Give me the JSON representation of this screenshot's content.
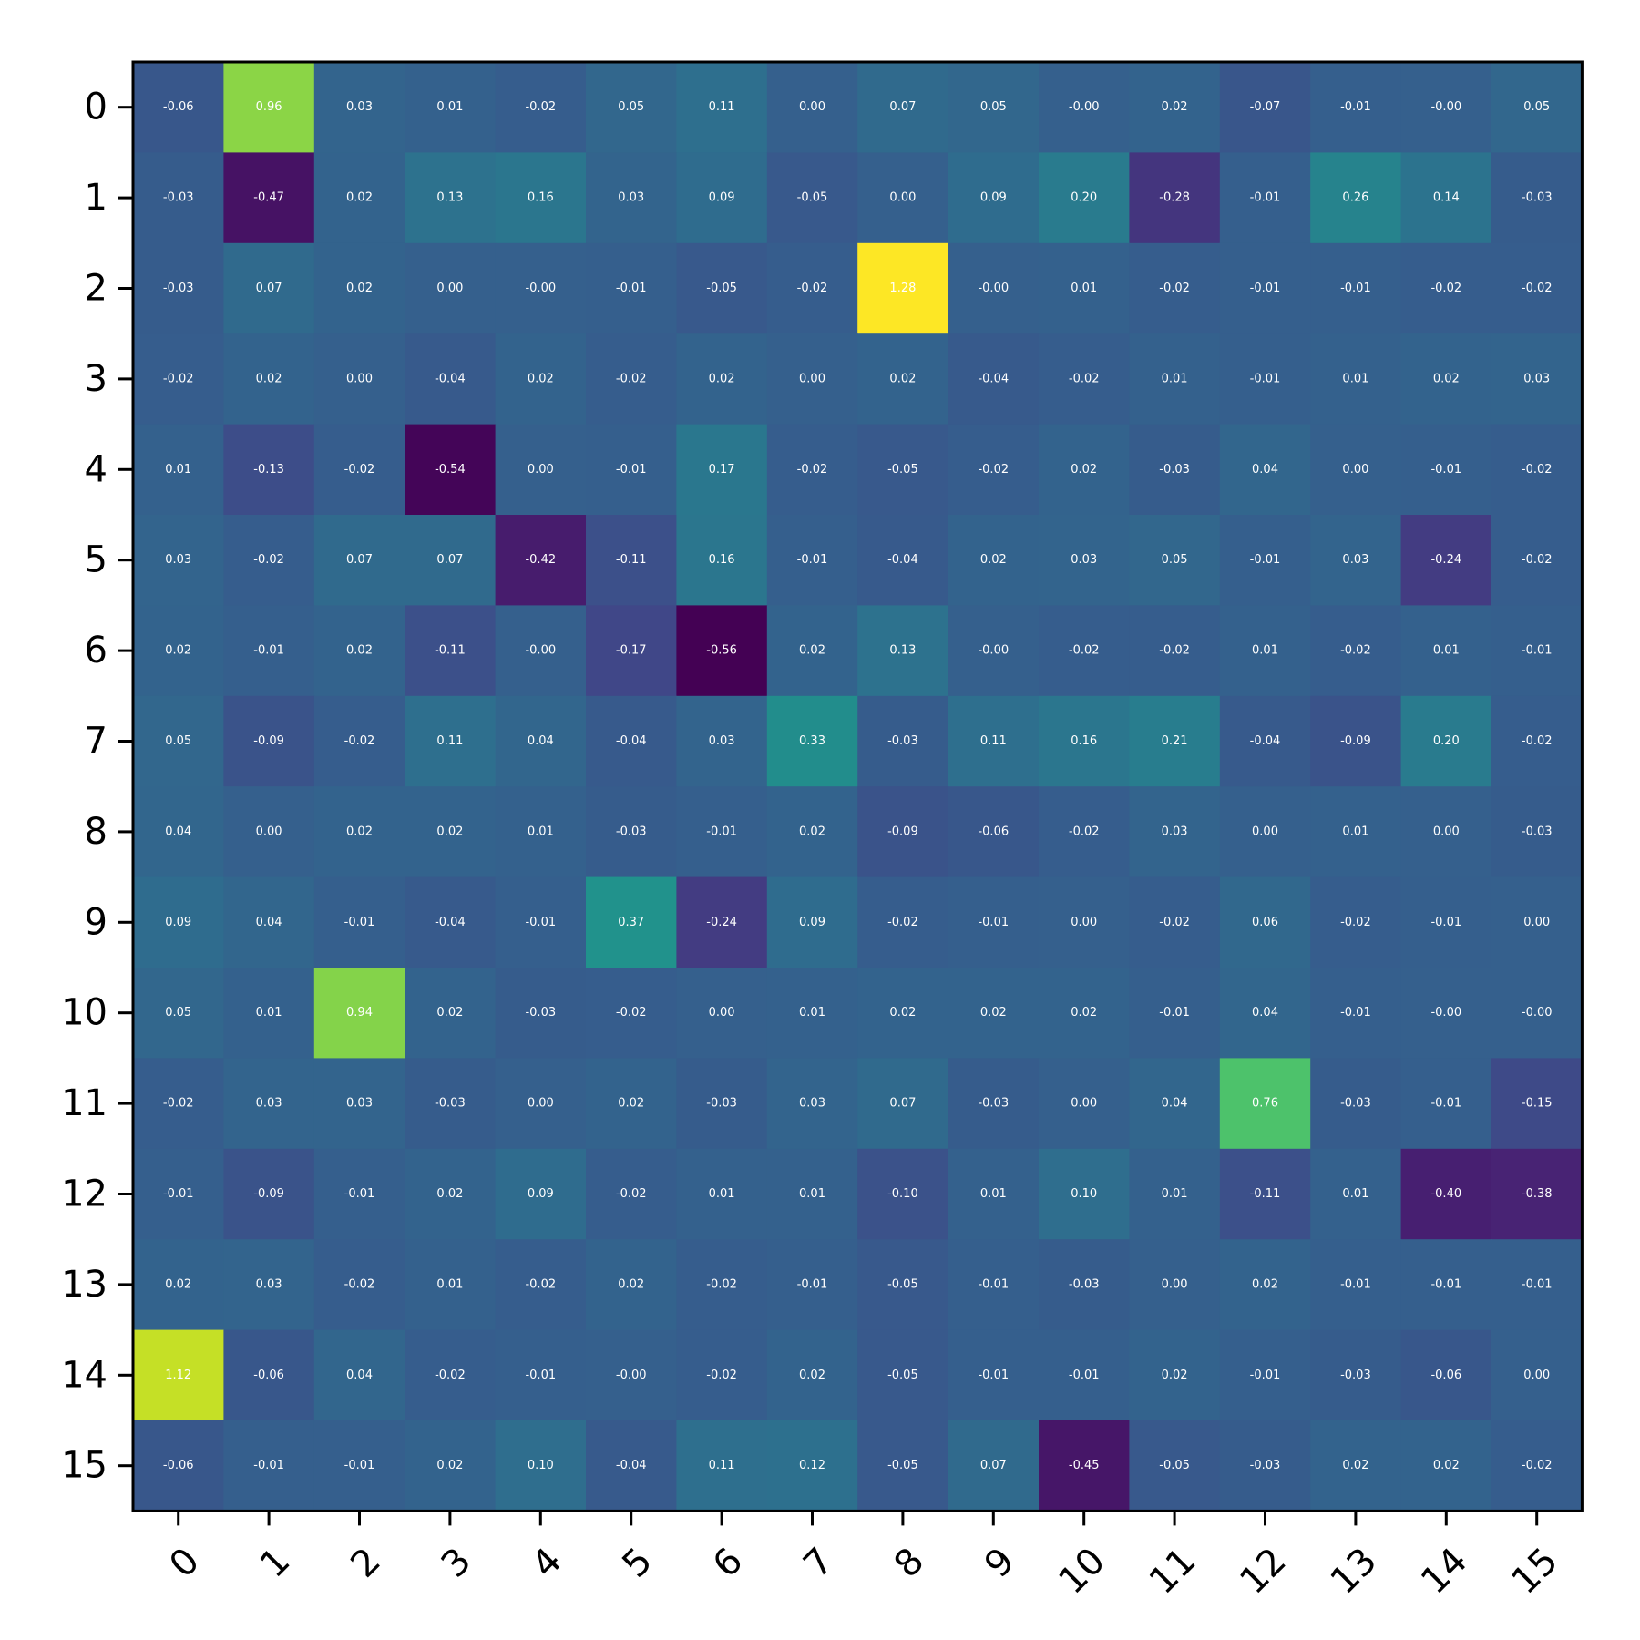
{
  "chart_data": {
    "type": "heatmap",
    "title": "",
    "xlabel": "",
    "ylabel": "",
    "x_ticks": [
      "0",
      "1",
      "2",
      "3",
      "4",
      "5",
      "6",
      "7",
      "8",
      "9",
      "10",
      "11",
      "12",
      "13",
      "14",
      "15"
    ],
    "y_ticks": [
      "0",
      "1",
      "2",
      "3",
      "4",
      "5",
      "6",
      "7",
      "8",
      "9",
      "10",
      "11",
      "12",
      "13",
      "14",
      "15"
    ],
    "colormap": "viridis",
    "vmin": -0.56,
    "vmax": 1.28,
    "values": [
      [
        -0.06,
        0.96,
        0.03,
        0.01,
        -0.02,
        0.05,
        0.11,
        0.0,
        0.07,
        0.05,
        -0.0,
        0.02,
        -0.07,
        -0.01,
        -0.0,
        0.05
      ],
      [
        -0.03,
        -0.47,
        0.02,
        0.13,
        0.16,
        0.03,
        0.09,
        -0.05,
        0.0,
        0.09,
        0.2,
        -0.28,
        -0.01,
        0.26,
        0.14,
        -0.03
      ],
      [
        -0.03,
        0.07,
        0.02,
        0.0,
        -0.0,
        -0.01,
        -0.05,
        -0.02,
        1.28,
        -0.0,
        0.01,
        -0.02,
        -0.01,
        -0.01,
        -0.02,
        -0.02
      ],
      [
        -0.02,
        0.02,
        0.0,
        -0.04,
        0.02,
        -0.02,
        0.02,
        0.0,
        0.02,
        -0.04,
        -0.02,
        0.01,
        -0.01,
        0.01,
        0.02,
        0.03
      ],
      [
        0.01,
        -0.13,
        -0.02,
        -0.54,
        0.0,
        -0.01,
        0.17,
        -0.02,
        -0.05,
        -0.02,
        0.02,
        -0.03,
        0.04,
        0.0,
        -0.01,
        -0.02
      ],
      [
        0.03,
        -0.02,
        0.07,
        0.07,
        -0.42,
        -0.11,
        0.16,
        -0.01,
        -0.04,
        0.02,
        0.03,
        0.05,
        -0.01,
        0.03,
        -0.24,
        -0.02
      ],
      [
        0.02,
        -0.01,
        0.02,
        -0.11,
        -0.0,
        -0.17,
        -0.56,
        0.02,
        0.13,
        -0.0,
        -0.02,
        -0.02,
        0.01,
        -0.02,
        0.01,
        -0.01
      ],
      [
        0.05,
        -0.09,
        -0.02,
        0.11,
        0.04,
        -0.04,
        0.03,
        0.33,
        -0.03,
        0.11,
        0.16,
        0.21,
        -0.04,
        -0.09,
        0.2,
        -0.02
      ],
      [
        0.04,
        0.0,
        0.02,
        0.02,
        0.01,
        -0.03,
        -0.01,
        0.02,
        -0.09,
        -0.06,
        -0.02,
        0.03,
        0.0,
        0.01,
        0.0,
        -0.03
      ],
      [
        0.09,
        0.04,
        -0.01,
        -0.04,
        -0.01,
        0.37,
        -0.24,
        0.09,
        -0.02,
        -0.01,
        0.0,
        -0.02,
        0.06,
        -0.02,
        -0.01,
        0.0
      ],
      [
        0.05,
        0.01,
        0.94,
        0.02,
        -0.03,
        -0.02,
        0.0,
        0.01,
        0.02,
        0.02,
        0.02,
        -0.01,
        0.04,
        -0.01,
        -0.0,
        -0.0
      ],
      [
        -0.02,
        0.03,
        0.03,
        -0.03,
        0.0,
        0.02,
        -0.03,
        0.03,
        0.07,
        -0.03,
        0.0,
        0.04,
        0.76,
        -0.03,
        -0.01,
        -0.15
      ],
      [
        -0.01,
        -0.09,
        -0.01,
        0.02,
        0.09,
        -0.02,
        0.01,
        0.01,
        -0.1,
        0.01,
        0.1,
        0.01,
        -0.11,
        0.01,
        -0.4,
        -0.38
      ],
      [
        0.02,
        0.03,
        -0.02,
        0.01,
        -0.02,
        0.02,
        -0.02,
        -0.01,
        -0.05,
        -0.01,
        -0.03,
        0.0,
        0.02,
        -0.01,
        -0.01,
        -0.01
      ],
      [
        1.12,
        -0.06,
        0.04,
        -0.02,
        -0.01,
        -0.0,
        -0.02,
        0.02,
        -0.05,
        -0.01,
        -0.01,
        0.02,
        -0.01,
        -0.03,
        -0.06,
        0.0
      ],
      [
        -0.06,
        -0.01,
        -0.01,
        0.02,
        0.1,
        -0.04,
        0.11,
        0.12,
        -0.05,
        0.07,
        -0.45,
        -0.05,
        -0.03,
        0.02,
        0.02,
        -0.02
      ]
    ],
    "labels": [
      [
        "-0.06",
        "0.96",
        "0.03",
        "0.01",
        "-0.02",
        "0.05",
        "0.11",
        "0.00",
        "0.07",
        "0.05",
        "-0.00",
        "0.02",
        "-0.07",
        "-0.01",
        "-0.00",
        "0.05"
      ],
      [
        "-0.03",
        "-0.47",
        "0.02",
        "0.13",
        "0.16",
        "0.03",
        "0.09",
        "-0.05",
        "0.00",
        "0.09",
        "0.20",
        "-0.28",
        "-0.01",
        "0.26",
        "0.14",
        "-0.03"
      ],
      [
        "-0.03",
        "0.07",
        "0.02",
        "0.00",
        "-0.00",
        "-0.01",
        "-0.05",
        "-0.02",
        "1.28",
        "-0.00",
        "0.01",
        "-0.02",
        "-0.01",
        "-0.01",
        "-0.02",
        "-0.02"
      ],
      [
        "-0.02",
        "0.02",
        "0.00",
        "-0.04",
        "0.02",
        "-0.02",
        "0.02",
        "0.00",
        "0.02",
        "-0.04",
        "-0.02",
        "0.01",
        "-0.01",
        "0.01",
        "0.02",
        "0.03"
      ],
      [
        "0.01",
        "-0.13",
        "-0.02",
        "-0.54",
        "0.00",
        "-0.01",
        "0.17",
        "-0.02",
        "-0.05",
        "-0.02",
        "0.02",
        "-0.03",
        "0.04",
        "0.00",
        "-0.01",
        "-0.02"
      ],
      [
        "0.03",
        "-0.02",
        "0.07",
        "0.07",
        "-0.42",
        "-0.11",
        "0.16",
        "-0.01",
        "-0.04",
        "0.02",
        "0.03",
        "0.05",
        "-0.01",
        "0.03",
        "-0.24",
        "-0.02"
      ],
      [
        "0.02",
        "-0.01",
        "0.02",
        "-0.11",
        "-0.00",
        "-0.17",
        "-0.56",
        "0.02",
        "0.13",
        "-0.00",
        "-0.02",
        "-0.02",
        "0.01",
        "-0.02",
        "0.01",
        "-0.01"
      ],
      [
        "0.05",
        "-0.09",
        "-0.02",
        "0.11",
        "0.04",
        "-0.04",
        "0.03",
        "0.33",
        "-0.03",
        "0.11",
        "0.16",
        "0.21",
        "-0.04",
        "-0.09",
        "0.20",
        "-0.02"
      ],
      [
        "0.04",
        "0.00",
        "0.02",
        "0.02",
        "0.01",
        "-0.03",
        "-0.01",
        "0.02",
        "-0.09",
        "-0.06",
        "-0.02",
        "0.03",
        "0.00",
        "0.01",
        "0.00",
        "-0.03"
      ],
      [
        "0.09",
        "0.04",
        "-0.01",
        "-0.04",
        "-0.01",
        "0.37",
        "-0.24",
        "0.09",
        "-0.02",
        "-0.01",
        "0.00",
        "-0.02",
        "0.06",
        "-0.02",
        "-0.01",
        "0.00"
      ],
      [
        "0.05",
        "0.01",
        "0.94",
        "0.02",
        "-0.03",
        "-0.02",
        "0.00",
        "0.01",
        "0.02",
        "0.02",
        "0.02",
        "-0.01",
        "0.04",
        "-0.01",
        "-0.00",
        "-0.00"
      ],
      [
        "-0.02",
        "0.03",
        "0.03",
        "-0.03",
        "0.00",
        "0.02",
        "-0.03",
        "0.03",
        "0.07",
        "-0.03",
        "0.00",
        "0.04",
        "0.76",
        "-0.03",
        "-0.01",
        "-0.15"
      ],
      [
        "-0.01",
        "-0.09",
        "-0.01",
        "0.02",
        "0.09",
        "-0.02",
        "0.01",
        "0.01",
        "-0.10",
        "0.01",
        "0.10",
        "0.01",
        "-0.11",
        "0.01",
        "-0.40",
        "-0.38"
      ],
      [
        "0.02",
        "0.03",
        "-0.02",
        "0.01",
        "-0.02",
        "0.02",
        "-0.02",
        "-0.01",
        "-0.05",
        "-0.01",
        "-0.03",
        "0.00",
        "0.02",
        "-0.01",
        "-0.01",
        "-0.01"
      ],
      [
        "1.12",
        "-0.06",
        "0.04",
        "-0.02",
        "-0.01",
        "-0.00",
        "-0.02",
        "0.02",
        "-0.05",
        "-0.01",
        "-0.01",
        "0.02",
        "-0.01",
        "-0.03",
        "-0.06",
        "0.00"
      ],
      [
        "-0.06",
        "-0.01",
        "-0.01",
        "0.02",
        "0.10",
        "-0.04",
        "0.11",
        "0.12",
        "-0.05",
        "0.07",
        "-0.45",
        "-0.05",
        "-0.03",
        "0.02",
        "0.02",
        "-0.02"
      ]
    ],
    "x_tick_rotation_deg": 45,
    "grid": false,
    "legend": "none"
  }
}
